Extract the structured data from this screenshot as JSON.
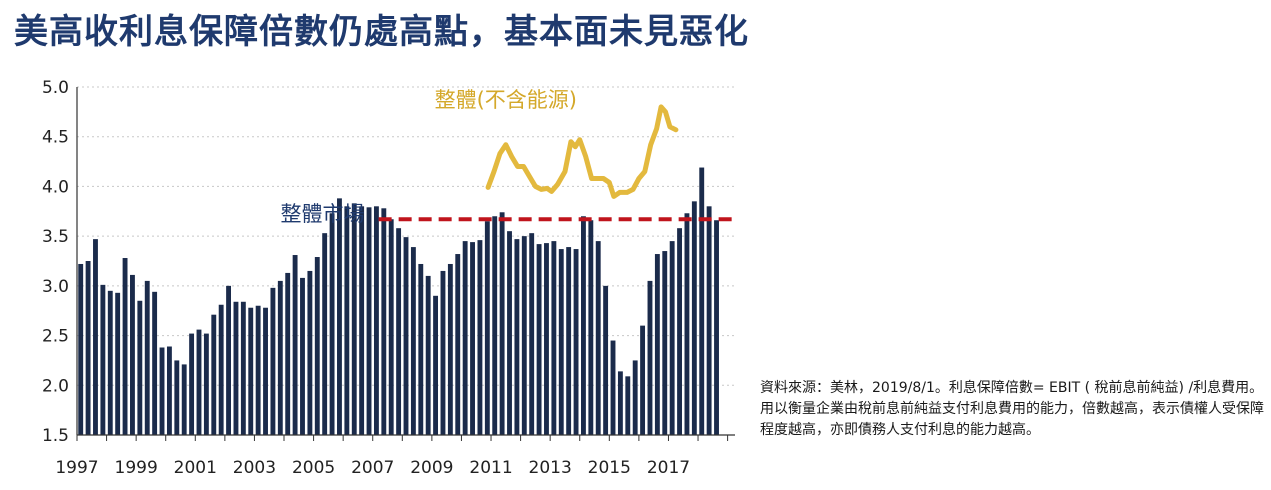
{
  "page": {
    "title": "美高收利息保障倍數仍處高點，基本面未見惡化",
    "source_note": "資料來源：美林，2019/8/1。利息保障倍數= EBIT ( 稅前息前純益) /利息費用。 用以衡量企業由稅前息前純益支付利息費用的能力，倍數越高，表示債權人受保障程度越高，亦即債務人支付利息的能力越高。"
  },
  "colors": {
    "bar": "#1b2b4b",
    "line": "#e3b93e",
    "dashed": "#c0141c",
    "grid": "#c8c8c8",
    "axis": "#333333",
    "series_label_bar": "#1f3a6e",
    "series_label_line": "#d4a82a"
  },
  "chart_data": {
    "type": "bar",
    "title": "",
    "xlabel": "",
    "ylabel": "",
    "ylim": [
      1.5,
      5.0
    ],
    "yticks": [
      "1.5",
      "2.0",
      "2.5",
      "3.0",
      "3.5",
      "4.0",
      "4.5",
      "5.0"
    ],
    "xlim": [
      1997.0,
      2019.25
    ],
    "xticks": [
      "1997",
      "1999",
      "2001",
      "2003",
      "2005",
      "2007",
      "2009",
      "2011",
      "2013",
      "2015",
      "2017"
    ],
    "grid": true,
    "series": [
      {
        "name": "整體市場",
        "type": "bar",
        "bar_start": 1997.0,
        "bar_step": 0.25,
        "values": [
          3.22,
          3.25,
          3.47,
          3.01,
          2.95,
          2.93,
          3.28,
          3.11,
          2.85,
          3.05,
          2.94,
          2.38,
          2.39,
          2.25,
          2.21,
          2.52,
          2.56,
          2.52,
          2.71,
          2.81,
          3.0,
          2.84,
          2.84,
          2.78,
          2.8,
          2.78,
          2.98,
          3.05,
          3.13,
          3.31,
          3.08,
          3.15,
          3.29,
          3.53,
          3.73,
          3.88,
          3.8,
          3.83,
          3.8,
          3.79,
          3.8,
          3.78,
          3.67,
          3.58,
          3.49,
          3.39,
          3.22,
          3.1,
          2.9,
          3.15,
          3.22,
          3.32,
          3.45,
          3.44,
          3.46,
          3.65,
          3.7,
          3.74,
          3.55,
          3.47,
          3.5,
          3.53,
          3.42,
          3.43,
          3.45,
          3.37,
          3.39,
          3.37,
          3.7,
          3.66,
          3.45,
          3.0,
          2.45,
          2.14,
          2.09,
          2.25,
          2.6,
          3.05,
          3.32,
          3.35,
          3.45,
          3.58,
          3.73,
          3.85,
          4.19,
          3.8,
          3.66
        ]
      },
      {
        "name": "整體(不含能源)",
        "type": "line",
        "points": [
          [
            2010.9,
            3.99
          ],
          [
            2011.1,
            4.15
          ],
          [
            2011.3,
            4.33
          ],
          [
            2011.5,
            4.42
          ],
          [
            2011.7,
            4.3
          ],
          [
            2011.9,
            4.2
          ],
          [
            2012.1,
            4.2
          ],
          [
            2012.3,
            4.1
          ],
          [
            2012.5,
            4.0
          ],
          [
            2012.7,
            3.97
          ],
          [
            2012.9,
            3.98
          ],
          [
            2013.05,
            3.95
          ],
          [
            2013.25,
            4.02
          ],
          [
            2013.5,
            4.15
          ],
          [
            2013.7,
            4.45
          ],
          [
            2013.85,
            4.4
          ],
          [
            2014.0,
            4.47
          ],
          [
            2014.2,
            4.3
          ],
          [
            2014.4,
            4.08
          ],
          [
            2014.6,
            4.08
          ],
          [
            2014.8,
            4.08
          ],
          [
            2015.0,
            4.04
          ],
          [
            2015.15,
            3.9
          ],
          [
            2015.35,
            3.94
          ],
          [
            2015.6,
            3.94
          ],
          [
            2015.8,
            3.97
          ],
          [
            2016.0,
            4.08
          ],
          [
            2016.2,
            4.15
          ],
          [
            2016.4,
            4.42
          ],
          [
            2016.6,
            4.58
          ],
          [
            2016.75,
            4.8
          ],
          [
            2016.9,
            4.75
          ],
          [
            2017.05,
            4.6
          ],
          [
            2017.25,
            4.57
          ]
        ]
      }
    ],
    "reference_line": {
      "style": "dashed",
      "y": 3.67,
      "x_from": 2007.2,
      "x_to": 2019.25
    },
    "annotations": [
      {
        "text": "整體市場",
        "x": 2005.3,
        "y": 3.65,
        "series": "整體市場"
      },
      {
        "text": "整體(不含能源)",
        "x": 2011.5,
        "y": 4.8,
        "series": "整體(不含能源)"
      }
    ]
  }
}
